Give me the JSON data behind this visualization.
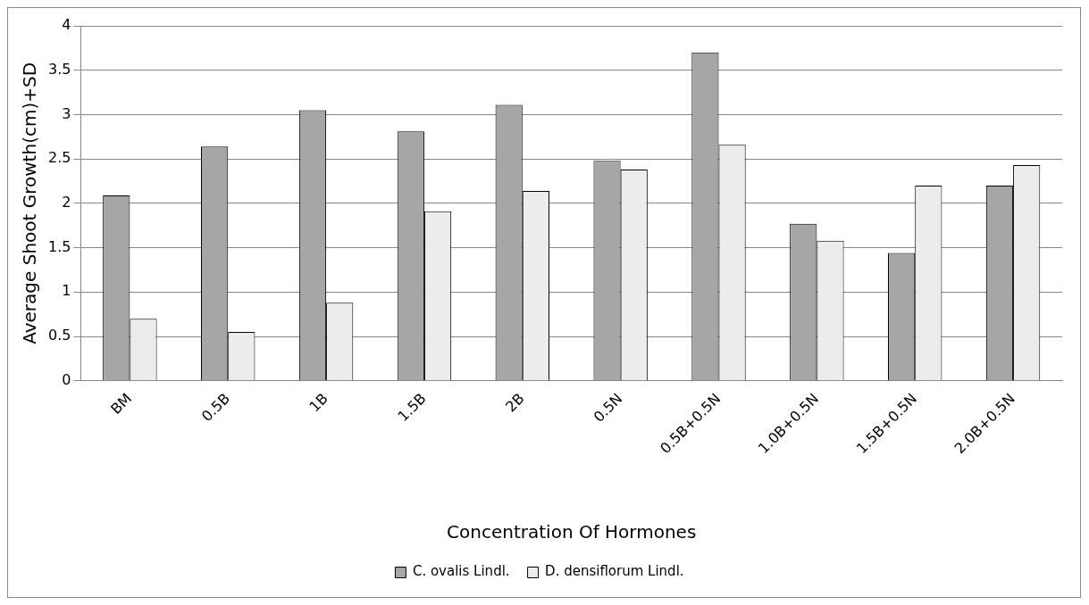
{
  "chart_data": {
    "type": "bar",
    "xlabel": "Concentration Of Hormones",
    "ylabel": "Average Shoot Growth(cm)+SD",
    "categories": [
      "BM",
      "0.5B",
      "1B",
      "1.5B",
      "2B",
      "0.5N",
      "0.5B+0.5N",
      "1.0B+0.5N",
      "1.5B+0.5N",
      "2.0B+0.5N"
    ],
    "series": [
      {
        "name": "C. ovalis Lindl.",
        "color": "#a6a6a6",
        "values": [
          2.09,
          2.64,
          3.05,
          2.81,
          3.11,
          2.48,
          3.7,
          1.77,
          1.44,
          2.2
        ]
      },
      {
        "name": "D. densiflorum Lindl.",
        "color": "#ececec",
        "values": [
          0.7,
          0.55,
          0.88,
          1.91,
          2.14,
          2.38,
          2.66,
          1.58,
          2.2,
          2.43
        ]
      }
    ],
    "ylim": [
      0,
      4
    ],
    "yticks": [
      0,
      0.5,
      1,
      1.5,
      2,
      2.5,
      3,
      3.5,
      4
    ],
    "grid": "y",
    "legend": "bottom"
  }
}
